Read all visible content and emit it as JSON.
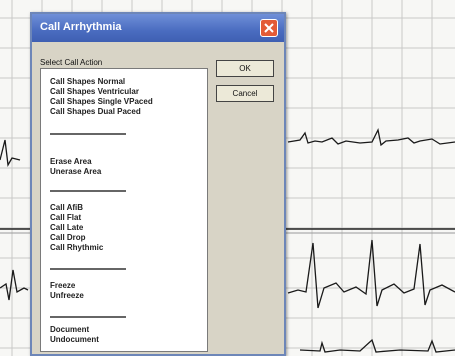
{
  "dialog": {
    "title": "Call Arrhythmia",
    "group_label": "Select Call Action",
    "ok_label": "OK",
    "cancel_label": "Cancel",
    "close_icon": "close-icon"
  },
  "list_groups": [
    [
      "Call Shapes Normal",
      "Call Shapes Ventricular",
      "Call Shapes Single VPaced",
      "Call Shapes Dual Paced"
    ],
    [
      "Erase Area",
      "Unerase Area"
    ],
    [
      "Call AfiB",
      "Call Flat",
      "Call Late",
      "Call Drop",
      "Call Rhythmic"
    ],
    [
      "Freeze",
      "Unfreeze"
    ],
    [
      "Document",
      "Undocument"
    ]
  ],
  "colors": {
    "title_bar": "#4a6cc0",
    "close_button": "#e35a36",
    "ecg_grid": "#c8c8c8",
    "ecg_trace": "#1a1a1a"
  }
}
